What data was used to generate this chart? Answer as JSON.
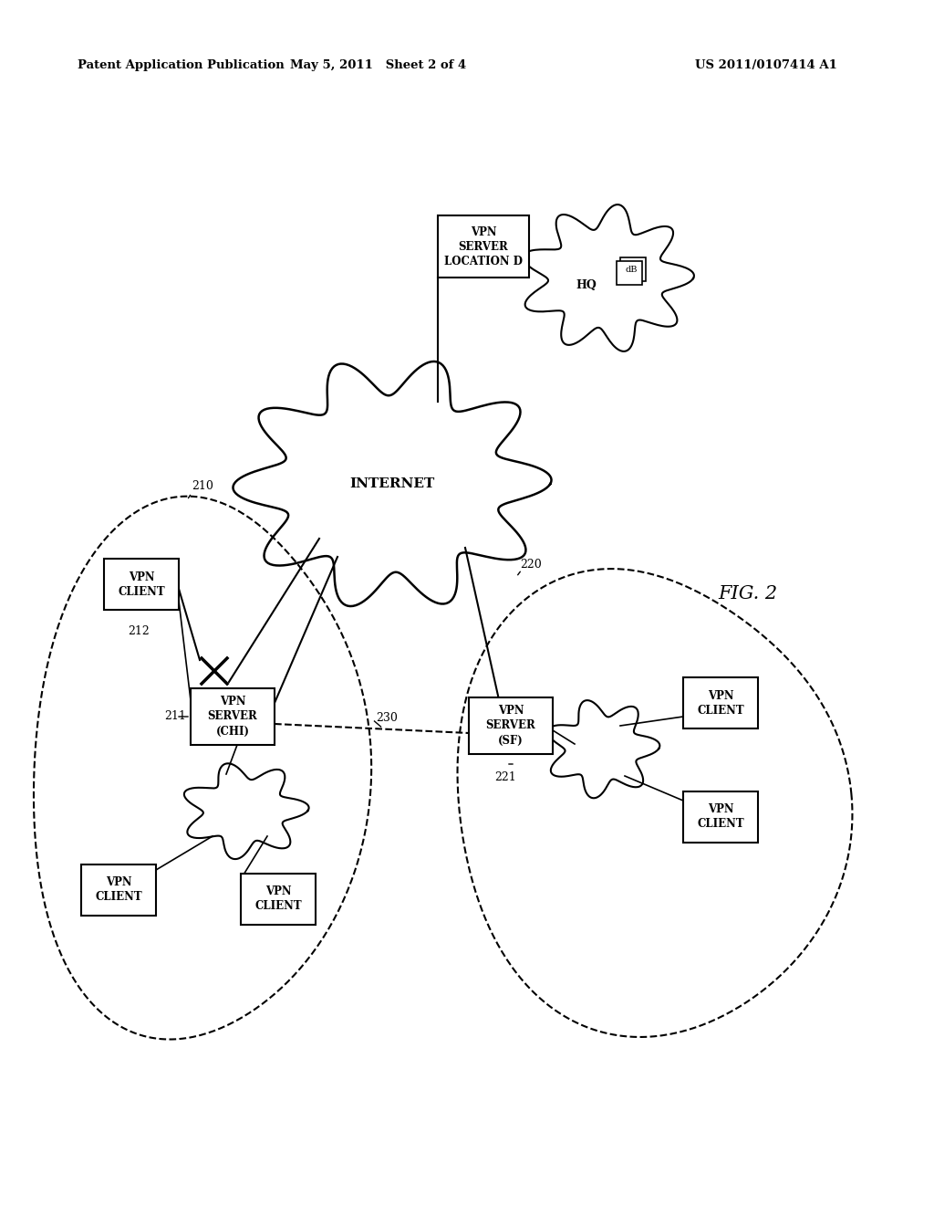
{
  "header_left": "Patent Application Publication",
  "header_mid": "May 5, 2011   Sheet 2 of 4",
  "header_right": "US 2011/0107414 A1",
  "fig_label": "FIG. 2",
  "background_color": "#ffffff",
  "line_color": "#000000"
}
